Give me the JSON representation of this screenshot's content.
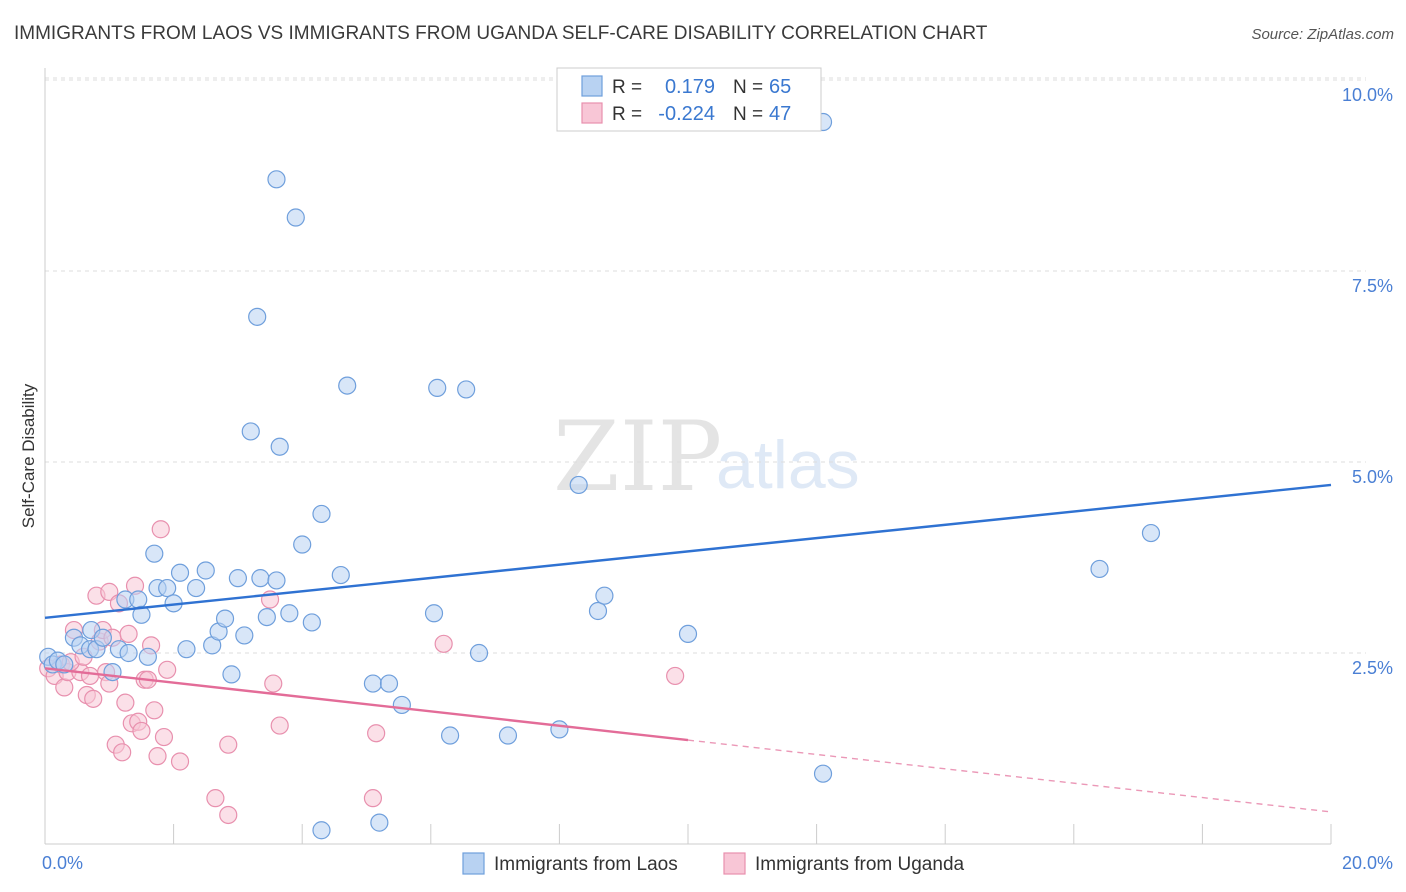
{
  "title": "IMMIGRANTS FROM LAOS VS IMMIGRANTS FROM UGANDA SELF-CARE DISABILITY CORRELATION CHART",
  "source": "Source: ZipAtlas.com",
  "watermark": {
    "zip": "ZIP",
    "atlas": "atlas"
  },
  "colors": {
    "blue_fill": "#b8d2f2",
    "blue_stroke": "#6f9fdc",
    "blue_line": "#2f72d2",
    "pink_fill": "#f8c6d6",
    "pink_stroke": "#e890ae",
    "pink_line": "#e36c98",
    "tick_label": "#4a7fd4",
    "grid": "#dddddd"
  },
  "legend_top": {
    "rows": [
      {
        "r_label": "R =",
        "r_value": "0.179",
        "n_label": "N =",
        "n_value": "65"
      },
      {
        "r_label": "R =",
        "r_value": "-0.224",
        "n_label": "N =",
        "n_value": "47"
      }
    ]
  },
  "chart_data": {
    "type": "scatter",
    "title": "IMMIGRANTS FROM LAOS VS IMMIGRANTS FROM UGANDA SELF-CARE DISABILITY CORRELATION CHART",
    "xlabel": "",
    "ylabel": "Self-Care Disability",
    "xlim": [
      0,
      20
    ],
    "ylim": [
      0,
      10.5
    ],
    "x_tick_labels": [
      {
        "value": 0,
        "label": "0.0%"
      },
      {
        "value": 20,
        "label": "20.0%"
      }
    ],
    "y_tick_labels": [
      {
        "value": 2.5,
        "label": "2.5%"
      },
      {
        "value": 5.0,
        "label": "5.0%"
      },
      {
        "value": 7.5,
        "label": "7.5%"
      },
      {
        "value": 10.0,
        "label": "10.0%"
      }
    ],
    "legend": [
      "Immigrants from Laos",
      "Immigrants from Uganda"
    ],
    "series": [
      {
        "name": "Immigrants from Laos",
        "color": "blue",
        "r": 0.179,
        "n": 65,
        "trend": {
          "x0": 0,
          "y0": 2.96,
          "x1": 20,
          "y1": 4.7,
          "solid_until": 20
        },
        "points": [
          [
            0.05,
            2.45
          ],
          [
            0.12,
            2.35
          ],
          [
            0.2,
            2.4
          ],
          [
            0.3,
            2.35
          ],
          [
            0.45,
            2.7
          ],
          [
            0.55,
            2.6
          ],
          [
            0.7,
            2.55
          ],
          [
            0.72,
            2.8
          ],
          [
            0.8,
            2.55
          ],
          [
            0.9,
            2.7
          ],
          [
            1.05,
            2.25
          ],
          [
            1.15,
            2.55
          ],
          [
            1.25,
            3.2
          ],
          [
            1.3,
            2.5
          ],
          [
            1.45,
            3.2
          ],
          [
            1.5,
            3.0
          ],
          [
            1.6,
            2.45
          ],
          [
            1.7,
            3.8
          ],
          [
            1.75,
            3.35
          ],
          [
            1.9,
            3.35
          ],
          [
            2.0,
            3.15
          ],
          [
            2.1,
            3.55
          ],
          [
            2.2,
            2.55
          ],
          [
            2.35,
            3.35
          ],
          [
            2.5,
            3.58
          ],
          [
            2.6,
            2.6
          ],
          [
            2.7,
            2.78
          ],
          [
            2.8,
            2.95
          ],
          [
            2.9,
            2.22
          ],
          [
            3.0,
            3.48
          ],
          [
            3.1,
            2.73
          ],
          [
            3.2,
            5.4
          ],
          [
            3.3,
            6.9
          ],
          [
            3.35,
            3.48
          ],
          [
            3.45,
            2.97
          ],
          [
            3.6,
            3.45
          ],
          [
            3.65,
            5.2
          ],
          [
            3.6,
            8.7
          ],
          [
            3.8,
            3.02
          ],
          [
            3.9,
            8.2
          ],
          [
            4.0,
            3.92
          ],
          [
            4.15,
            2.9
          ],
          [
            4.3,
            4.32
          ],
          [
            4.3,
            0.18
          ],
          [
            4.6,
            3.52
          ],
          [
            4.7,
            6.0
          ],
          [
            5.1,
            2.1
          ],
          [
            5.2,
            0.28
          ],
          [
            5.35,
            2.1
          ],
          [
            5.55,
            1.82
          ],
          [
            6.05,
            3.02
          ],
          [
            6.1,
            5.97
          ],
          [
            6.3,
            1.42
          ],
          [
            6.55,
            5.95
          ],
          [
            6.75,
            2.5
          ],
          [
            7.2,
            1.42
          ],
          [
            8.0,
            1.5
          ],
          [
            8.3,
            4.7
          ],
          [
            8.6,
            3.05
          ],
          [
            8.7,
            3.25
          ],
          [
            10.0,
            2.75
          ],
          [
            12.1,
            9.45
          ],
          [
            12.1,
            0.92
          ],
          [
            16.4,
            3.6
          ],
          [
            17.2,
            4.07
          ]
        ]
      },
      {
        "name": "Immigrants from Uganda",
        "color": "pink",
        "r": -0.224,
        "n": 47,
        "trend": {
          "x0": 0,
          "y0": 2.3,
          "x1": 20,
          "y1": 0.42,
          "solid_until": 10.0
        },
        "points": [
          [
            0.05,
            2.3
          ],
          [
            0.15,
            2.2
          ],
          [
            0.25,
            2.35
          ],
          [
            0.3,
            2.05
          ],
          [
            0.35,
            2.25
          ],
          [
            0.45,
            2.8
          ],
          [
            0.55,
            2.25
          ],
          [
            0.65,
            1.95
          ],
          [
            0.7,
            2.2
          ],
          [
            0.75,
            1.9
          ],
          [
            0.8,
            3.25
          ],
          [
            0.85,
            2.65
          ],
          [
            0.9,
            2.8
          ],
          [
            0.95,
            2.25
          ],
          [
            1.0,
            3.3
          ],
          [
            1.05,
            2.7
          ],
          [
            1.1,
            1.3
          ],
          [
            1.15,
            3.15
          ],
          [
            1.2,
            1.2
          ],
          [
            1.25,
            1.85
          ],
          [
            1.3,
            2.75
          ],
          [
            1.35,
            1.58
          ],
          [
            1.4,
            3.38
          ],
          [
            1.45,
            1.6
          ],
          [
            1.5,
            1.48
          ],
          [
            1.55,
            2.15
          ],
          [
            1.6,
            2.15
          ],
          [
            1.65,
            2.6
          ],
          [
            1.7,
            1.75
          ],
          [
            1.75,
            1.15
          ],
          [
            1.8,
            4.12
          ],
          [
            1.85,
            1.4
          ],
          [
            1.9,
            2.28
          ],
          [
            2.1,
            1.08
          ],
          [
            2.65,
            0.6
          ],
          [
            2.85,
            0.38
          ],
          [
            2.85,
            1.3
          ],
          [
            3.5,
            3.2
          ],
          [
            3.55,
            2.1
          ],
          [
            3.65,
            1.55
          ],
          [
            5.1,
            0.6
          ],
          [
            5.15,
            1.45
          ],
          [
            6.2,
            2.62
          ],
          [
            9.8,
            2.2
          ],
          [
            0.4,
            2.38
          ],
          [
            0.6,
            2.45
          ],
          [
            1.0,
            2.1
          ]
        ]
      }
    ]
  },
  "legend_bottom": {
    "items": [
      {
        "label": "Immigrants from Laos"
      },
      {
        "label": "Immigrants from Uganda"
      }
    ]
  }
}
